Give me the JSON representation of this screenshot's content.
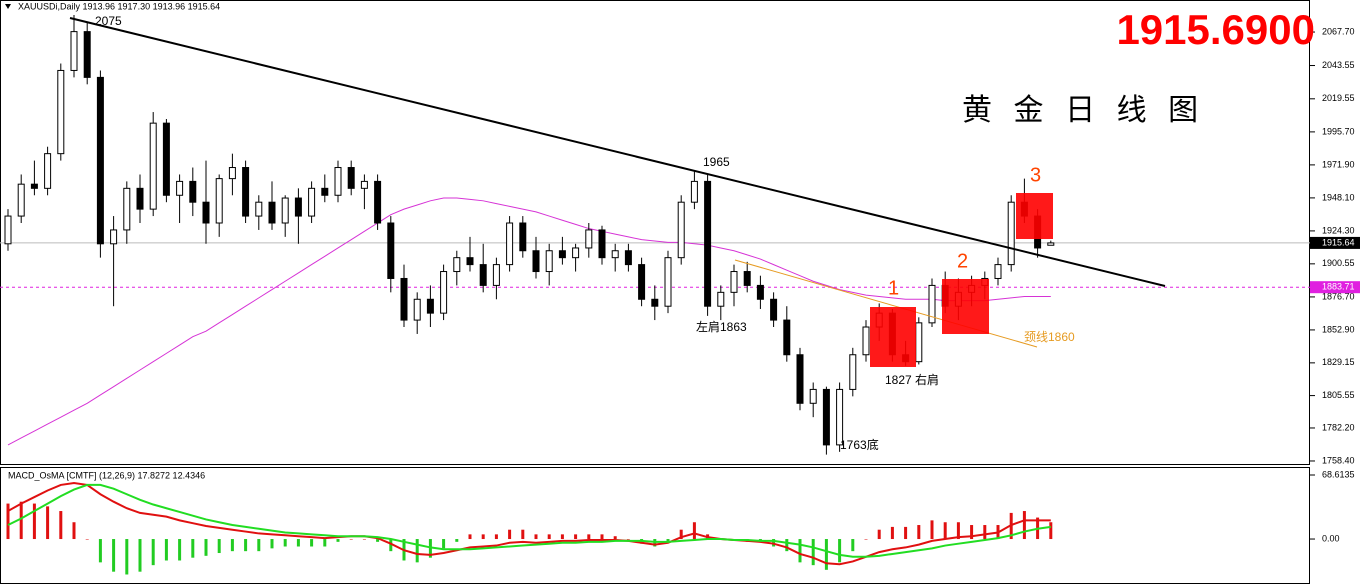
{
  "chart_data": [
    {
      "type": "candlestick",
      "title": "XAUUSDi,Daily 1913.96 1917.30 1913.96 1915.64",
      "headline": "1915.6900",
      "subtitle": "黄 金 日 线 图",
      "annotations": [
        "2075",
        "1965",
        "左肩1863",
        "1827 右肩",
        "1763底",
        "1",
        "2",
        "3",
        "颈线1860"
      ],
      "open": [
        1915,
        1935,
        1958,
        1955,
        1980,
        2040,
        2068,
        2035,
        1915,
        1925,
        1955,
        1940,
        2002,
        1950,
        1960,
        1945,
        1930,
        1962,
        1970,
        1935,
        1945,
        1930,
        1948,
        1935,
        1955,
        1950,
        1970,
        1955,
        1960,
        1930,
        1890,
        1860,
        1875,
        1865,
        1895,
        1905,
        1900,
        1885,
        1900,
        1930,
        1910,
        1895,
        1910,
        1905,
        1912,
        1925,
        1905,
        1910,
        1900,
        1875,
        1870,
        1905,
        1945,
        1960,
        1870,
        1880,
        1895,
        1885,
        1875,
        1860,
        1835,
        1800,
        1810,
        1770,
        1810,
        1835,
        1855,
        1865,
        1835,
        1830,
        1858,
        1885,
        1870,
        1880,
        1885,
        1890,
        1900,
        1945,
        1935,
        1913.96
      ],
      "high": [
        1940,
        1965,
        1975,
        1985,
        2045,
        2080,
        2075,
        2040,
        1935,
        1960,
        1965,
        2010,
        2005,
        1965,
        1970,
        1975,
        1965,
        1980,
        1975,
        1950,
        1960,
        1950,
        1955,
        1960,
        1965,
        1975,
        1975,
        1965,
        1965,
        1935,
        1900,
        1880,
        1885,
        1900,
        1910,
        1920,
        1915,
        1905,
        1935,
        1935,
        1920,
        1915,
        1920,
        1915,
        1930,
        1928,
        1915,
        1915,
        1905,
        1885,
        1910,
        1950,
        1968,
        1965,
        1885,
        1900,
        1902,
        1892,
        1880,
        1870,
        1840,
        1815,
        1812,
        1815,
        1840,
        1860,
        1872,
        1868,
        1845,
        1862,
        1890,
        1895,
        1890,
        1892,
        1895,
        1905,
        1950,
        1962,
        1940,
        1917.3
      ],
      "low": [
        1910,
        1930,
        1950,
        1950,
        1975,
        2035,
        2030,
        1905,
        1870,
        1915,
        1930,
        1935,
        1945,
        1930,
        1935,
        1915,
        1920,
        1950,
        1930,
        1925,
        1925,
        1920,
        1915,
        1930,
        1945,
        1945,
        1950,
        1940,
        1925,
        1880,
        1855,
        1850,
        1855,
        1860,
        1885,
        1895,
        1880,
        1875,
        1895,
        1905,
        1890,
        1885,
        1900,
        1895,
        1905,
        1900,
        1895,
        1895,
        1870,
        1860,
        1865,
        1900,
        1940,
        1863,
        1860,
        1870,
        1880,
        1868,
        1855,
        1830,
        1795,
        1790,
        1763,
        1765,
        1805,
        1830,
        1845,
        1830,
        1827,
        1828,
        1855,
        1865,
        1860,
        1870,
        1875,
        1885,
        1895,
        1930,
        1905,
        1913.96
      ],
      "close": [
        1935,
        1958,
        1955,
        1980,
        2040,
        2068,
        2035,
        1915,
        1925,
        1955,
        1940,
        2002,
        1950,
        1960,
        1945,
        1930,
        1962,
        1970,
        1935,
        1945,
        1930,
        1948,
        1935,
        1955,
        1950,
        1970,
        1955,
        1960,
        1930,
        1890,
        1860,
        1875,
        1865,
        1895,
        1905,
        1900,
        1885,
        1900,
        1930,
        1910,
        1895,
        1910,
        1905,
        1912,
        1925,
        1905,
        1910,
        1900,
        1875,
        1870,
        1905,
        1945,
        1960,
        1870,
        1880,
        1895,
        1885,
        1875,
        1860,
        1835,
        1800,
        1810,
        1770,
        1810,
        1835,
        1855,
        1865,
        1835,
        1830,
        1858,
        1885,
        1870,
        1880,
        1885,
        1890,
        1900,
        1945,
        1935,
        1912,
        1915.64
      ],
      "ma": {
        "color": "#d633d6",
        "values": [
          1770,
          1775,
          1780,
          1785,
          1790,
          1795,
          1800,
          1806,
          1812,
          1818,
          1824,
          1830,
          1836,
          1842,
          1848,
          1852,
          1858,
          1864,
          1870,
          1876,
          1882,
          1888,
          1894,
          1900,
          1906,
          1912,
          1918,
          1924,
          1930,
          1936,
          1940,
          1943,
          1946,
          1948,
          1948,
          1947,
          1946,
          1944,
          1942,
          1940,
          1938,
          1935,
          1932,
          1929,
          1926,
          1924,
          1922,
          1920,
          1918,
          1917,
          1916,
          1916,
          1915,
          1914,
          1912,
          1910,
          1907,
          1904,
          1900,
          1896,
          1892,
          1888,
          1885,
          1882,
          1880,
          1878,
          1877,
          1876,
          1875,
          1875,
          1875,
          1874,
          1874,
          1874,
          1874,
          1875,
          1876,
          1877,
          1877,
          1877
        ]
      },
      "price_lines": [
        {
          "value": 1915.64,
          "color": "#bbbbbb",
          "label_bg": "#000000"
        },
        {
          "value": 1883.71,
          "color": "#e020e0",
          "label_bg": "#e020e0"
        }
      ],
      "ylim": [
        1755.5,
        2090.8
      ],
      "yticks": [
        {
          "value": 2067.7,
          "label": "2067.70"
        },
        2043.55,
        2019.55,
        {
          "value": 1995.7,
          "label": "1995.70"
        },
        {
          "value": 1971.9,
          "label": "1971.90"
        },
        {
          "value": 1948.1,
          "label": "1948.10"
        },
        {
          "value": 1924.3,
          "label": "1924.30"
        },
        1900.55,
        {
          "value": 1876.7,
          "label": "1876.70"
        },
        {
          "value": 1852.9,
          "label": "1852.90"
        },
        1829.15,
        1805.55,
        {
          "value": 1782.2,
          "label": "1782.20"
        },
        {
          "value": 1758.4,
          "label": "1758.40"
        }
      ]
    },
    {
      "type": "macd",
      "title": "MACD_OsMA [CMTF] (12,26,9) 17.8272 12.4346",
      "histogram": {
        "pos_color": "#e01010",
        "neg_color": "#22cc22",
        "values": [
          38,
          40,
          38,
          35,
          30,
          18,
          0,
          -25,
          -35,
          -38,
          -35,
          -28,
          -23,
          -23,
          -20,
          -18,
          -15,
          -13,
          -13,
          -13,
          -10,
          -8,
          -8,
          -8,
          -8,
          -3,
          0,
          0,
          -3,
          -13,
          -23,
          -25,
          -20,
          -10,
          -3,
          5,
          5,
          5,
          10,
          10,
          5,
          5,
          5,
          5,
          5,
          5,
          3,
          0,
          -5,
          -8,
          -3,
          10,
          18,
          5,
          0,
          0,
          -3,
          -3,
          -8,
          -13,
          -25,
          -28,
          -33,
          -25,
          -13,
          0,
          10,
          13,
          13,
          15,
          20,
          18,
          18,
          15,
          15,
          15,
          28,
          30,
          23,
          18
        ]
      },
      "series": [
        {
          "name": "MACD",
          "color": "#e01010",
          "values": [
            30,
            38,
            45,
            52,
            58,
            60,
            58,
            48,
            40,
            33,
            28,
            26,
            24,
            20,
            17,
            14,
            12,
            10,
            8,
            6,
            5,
            4,
            3,
            2,
            1,
            2,
            3,
            3,
            1,
            -5,
            -12,
            -16,
            -17,
            -15,
            -12,
            -9,
            -8,
            -7,
            -4,
            -3,
            -4,
            -3,
            -2,
            -2,
            -1,
            -1,
            -1,
            -2,
            -4,
            -6,
            -4,
            2,
            6,
            2,
            0,
            -1,
            -2,
            -3,
            -5,
            -9,
            -16,
            -20,
            -26,
            -27,
            -24,
            -19,
            -14,
            -11,
            -9,
            -6,
            -2,
            0,
            2,
            3,
            5,
            7,
            15,
            20,
            20,
            20
          ]
        },
        {
          "name": "Signal",
          "color": "#22dd22",
          "values": [
            15,
            22,
            30,
            38,
            46,
            53,
            58,
            58,
            54,
            48,
            42,
            37,
            33,
            29,
            25,
            21,
            18,
            15,
            13,
            11,
            9,
            7,
            6,
            5,
            4,
            3,
            3,
            3,
            2,
            0,
            -3,
            -6,
            -9,
            -11,
            -11,
            -11,
            -10,
            -9,
            -8,
            -7,
            -6,
            -5,
            -4,
            -4,
            -3,
            -3,
            -2,
            -2,
            -2,
            -3,
            -3,
            -2,
            -1,
            0,
            0,
            -1,
            -1,
            -2,
            -2,
            -4,
            -6,
            -9,
            -13,
            -17,
            -19,
            -19,
            -18,
            -16,
            -14,
            -12,
            -10,
            -7,
            -5,
            -3,
            -1,
            1,
            4,
            8,
            11,
            13
          ]
        }
      ],
      "ylim": [
        -48.2,
        77.2
      ],
      "yticks": [
        68.6135,
        {
          "value": 0,
          "label": "0.00"
        }
      ]
    }
  ]
}
